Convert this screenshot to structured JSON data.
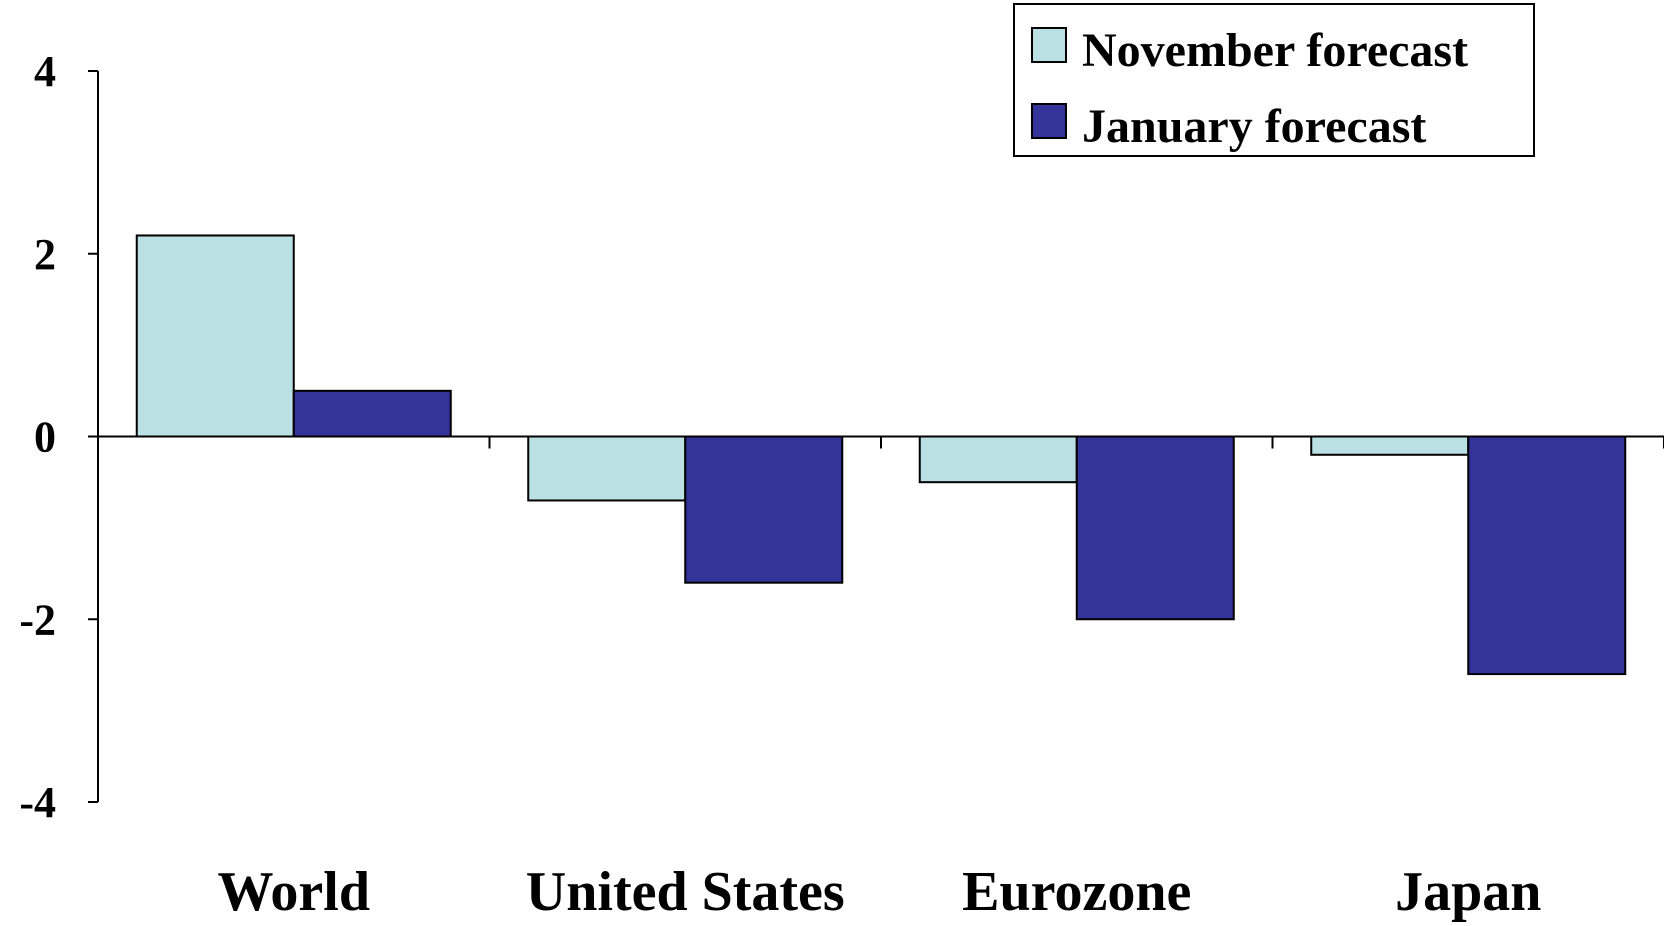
{
  "chart_data": {
    "type": "bar",
    "title": "",
    "xlabel": "",
    "ylabel": "",
    "categories": [
      "World",
      "United States",
      "Eurozone",
      "Japan"
    ],
    "series": [
      {
        "name": "November forecast",
        "color": "#bbe0e3",
        "values": [
          2.2,
          -0.7,
          -0.5,
          -0.2
        ]
      },
      {
        "name": "January forecast",
        "color": "#333399",
        "values": [
          0.5,
          -1.6,
          -2.0,
          -2.6
        ]
      }
    ],
    "ylim": [
      -4,
      4
    ],
    "yticks": [
      "4",
      "2",
      "0",
      "-2",
      "-4"
    ],
    "ytick_values": [
      4,
      2,
      0,
      -2,
      -4
    ],
    "grid": false,
    "legend_position": "top-right"
  }
}
